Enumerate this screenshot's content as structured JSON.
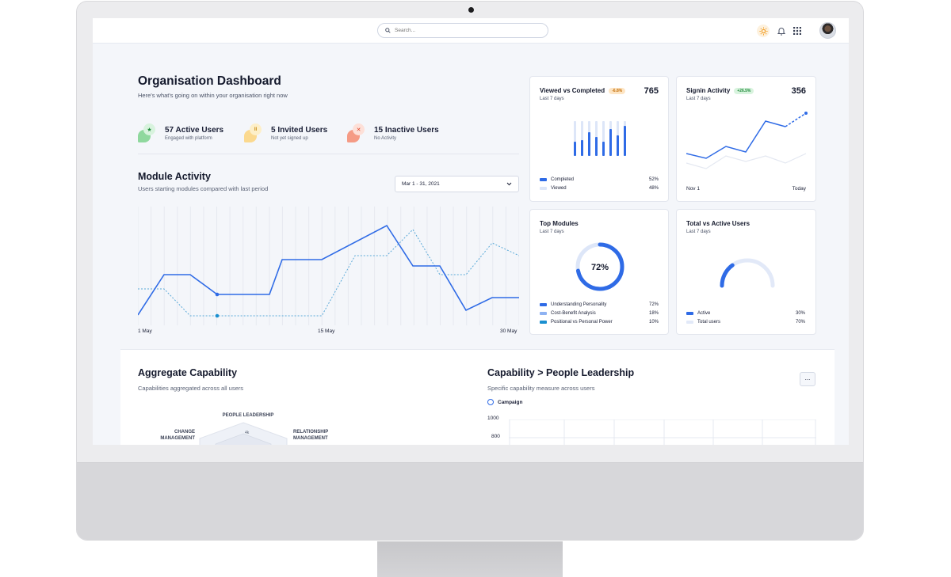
{
  "topbar": {
    "search_placeholder": "Search...",
    "icons": [
      "search-icon",
      "sun-icon",
      "bell-icon",
      "grid-icon",
      "user-avatar"
    ]
  },
  "header": {
    "title": "Organisation Dashboard",
    "subtitle": "Here's what's going on within your organisation right now"
  },
  "stats": [
    {
      "title": "57 Active Users",
      "sub": "Engaged with platform",
      "badge": "★",
      "color": "#3ebd5a"
    },
    {
      "title": "5 Invited Users",
      "sub": "Not yet signed up",
      "badge": "II",
      "color": "#f5b23d"
    },
    {
      "title": "15 Inactive Users",
      "sub": "No Activity",
      "badge": "✕",
      "color": "#f2674a"
    }
  ],
  "module_activity": {
    "title": "Module Activity",
    "subtitle": "Users starting modules compared with last period",
    "date_range": "Mar 1 - 31, 2021",
    "x_labels": [
      "1 May",
      "15 May",
      "30 May"
    ]
  },
  "cards": {
    "viewed_vs_completed": {
      "title": "Viewed vs Completed",
      "badge": "-6.8%",
      "period": "Last 7 days",
      "value": "765",
      "legend": [
        {
          "label": "Completed",
          "value": "52%",
          "color": "#2f6be6"
        },
        {
          "label": "Viewed",
          "value": "48%",
          "color": "#dde6f8"
        }
      ]
    },
    "signin_activity": {
      "title": "Signin Activity",
      "badge": "+26.5%",
      "period": "Last 7 days",
      "value": "356",
      "x_start": "Nov 1",
      "x_end": "Today"
    },
    "top_modules": {
      "title": "Top Modules",
      "period": "Last 7 days",
      "center": "72%",
      "progress": 0.72,
      "legend": [
        {
          "label": "Understanding Personality",
          "value": "72%",
          "color": "#2f6be6"
        },
        {
          "label": "Cost-Benefit Analysis",
          "value": "18%",
          "color": "#8eb2f2"
        },
        {
          "label": "Positional vs Personal Power",
          "value": "10%",
          "color": "#1a8fd0"
        }
      ]
    },
    "total_vs_active": {
      "title": "Total vs Active Users",
      "period": "Last 7 days",
      "active_fraction": 0.3,
      "legend": [
        {
          "label": "Active",
          "value": "30%",
          "color": "#2f6be6"
        },
        {
          "label": "Total users",
          "value": "70%",
          "color": "#e2e9f8"
        }
      ]
    }
  },
  "aggregate": {
    "title": "Aggregate Capability",
    "subtitle": "Capabilities aggregated across all users",
    "radar_labels": {
      "top": "PEOPLE LEADERSHIP",
      "left_1": "CHANGE",
      "left_2": "MANAGEMENT",
      "right_1": "RELATIONSHIP",
      "right_2": "MANAGEMENT"
    },
    "radar_tick": "4k"
  },
  "people_leadership": {
    "title": "Capability > People Leadership",
    "subtitle": "Specific capability measure across users",
    "legend_label": "Campaign",
    "kebab": "...",
    "y_ticks": [
      "1000",
      "800"
    ]
  }
}
